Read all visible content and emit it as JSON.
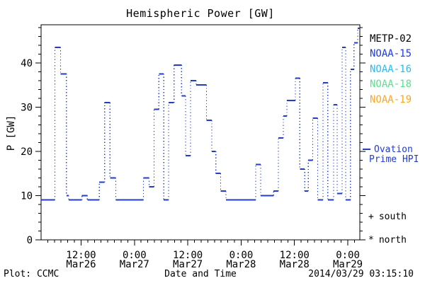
{
  "chart_data": {
    "type": "line",
    "subtype": "step-histogram",
    "title": "Hemispheric Power [GW]",
    "xlabel": "Date and Time",
    "ylabel": "P [GW]",
    "grid": false,
    "legend_position": "right",
    "ylim": [
      0,
      48.6
    ],
    "y_major_ticks": [
      0,
      10,
      20,
      30,
      40
    ],
    "y_minor_step": 2,
    "x_hours_origin": "Mar26 00:00",
    "xlim_hours": [
      3.0,
      74.7
    ],
    "end_hour": 74.7,
    "x_minor_step_hours": 1.5,
    "x_major_ticks": [
      {
        "hour": 12,
        "time": "12:00",
        "date": "Mar26"
      },
      {
        "hour": 24,
        "time": "0:00",
        "date": "Mar27"
      },
      {
        "hour": 36,
        "time": "12:00",
        "date": "Mar27"
      },
      {
        "hour": 48,
        "time": "0:00",
        "date": "Mar28"
      },
      {
        "hour": 60,
        "time": "12:00",
        "date": "Mar28"
      },
      {
        "hour": 72,
        "time": "0:00",
        "date": "Mar29"
      }
    ],
    "series": [
      {
        "name": "Ovation Prime HPI",
        "color": "#1f3be0",
        "line_style": "solid horizontal steps, dotted vertical transitions",
        "steps_hour_value": [
          [
            3.0,
            9
          ],
          [
            6.1,
            43.5
          ],
          [
            7.4,
            37.5
          ],
          [
            8.7,
            10
          ],
          [
            9.2,
            9
          ],
          [
            12.2,
            10
          ],
          [
            13.4,
            9
          ],
          [
            16.1,
            13
          ],
          [
            17.3,
            31
          ],
          [
            18.5,
            14
          ],
          [
            19.8,
            9
          ],
          [
            26.0,
            14
          ],
          [
            27.3,
            12
          ],
          [
            28.4,
            29.5
          ],
          [
            29.5,
            37.5
          ],
          [
            30.6,
            9
          ],
          [
            31.7,
            31
          ],
          [
            32.9,
            39.5
          ],
          [
            34.6,
            32.5
          ],
          [
            35.5,
            19
          ],
          [
            36.6,
            36
          ],
          [
            37.9,
            35
          ],
          [
            40.2,
            27
          ],
          [
            41.4,
            20
          ],
          [
            42.3,
            15
          ],
          [
            43.4,
            11
          ],
          [
            44.6,
            9
          ],
          [
            51.3,
            17
          ],
          [
            52.4,
            10
          ],
          [
            55.3,
            11
          ],
          [
            56.4,
            23
          ],
          [
            57.5,
            28
          ],
          [
            58.3,
            31.5
          ],
          [
            60.2,
            36.5
          ],
          [
            61.2,
            16
          ],
          [
            62.3,
            11
          ],
          [
            63.1,
            18
          ],
          [
            64.1,
            27.5
          ],
          [
            65.2,
            9
          ],
          [
            66.4,
            35.5
          ],
          [
            67.5,
            9
          ],
          [
            68.8,
            30.5
          ],
          [
            69.6,
            10.5
          ],
          [
            70.7,
            43.5
          ],
          [
            71.5,
            9
          ],
          [
            72.6,
            38.5
          ],
          [
            73.4,
            44.5
          ],
          [
            74.2,
            47.8
          ]
        ]
      }
    ]
  },
  "legend": {
    "satellites": [
      {
        "label": "METP-02",
        "color": "#000000"
      },
      {
        "label": "NOAA-15",
        "color": "#1f3be0"
      },
      {
        "label": "NOAA-16",
        "color": "#2ebcf0"
      },
      {
        "label": "NOAA-18",
        "color": "#5fe08e"
      },
      {
        "label": "NOAA-19",
        "color": "#ffa722"
      }
    ],
    "ovation": {
      "color": "#1f3be0",
      "line1": "Ovation",
      "line2": "Prime HPI"
    },
    "south": {
      "marker": "+",
      "label": "south"
    },
    "north": {
      "marker": "*",
      "label": "north"
    }
  },
  "footer": {
    "plot_credit": "Plot: CCMC",
    "timestamp": "2014/03/29 03:15:10"
  }
}
